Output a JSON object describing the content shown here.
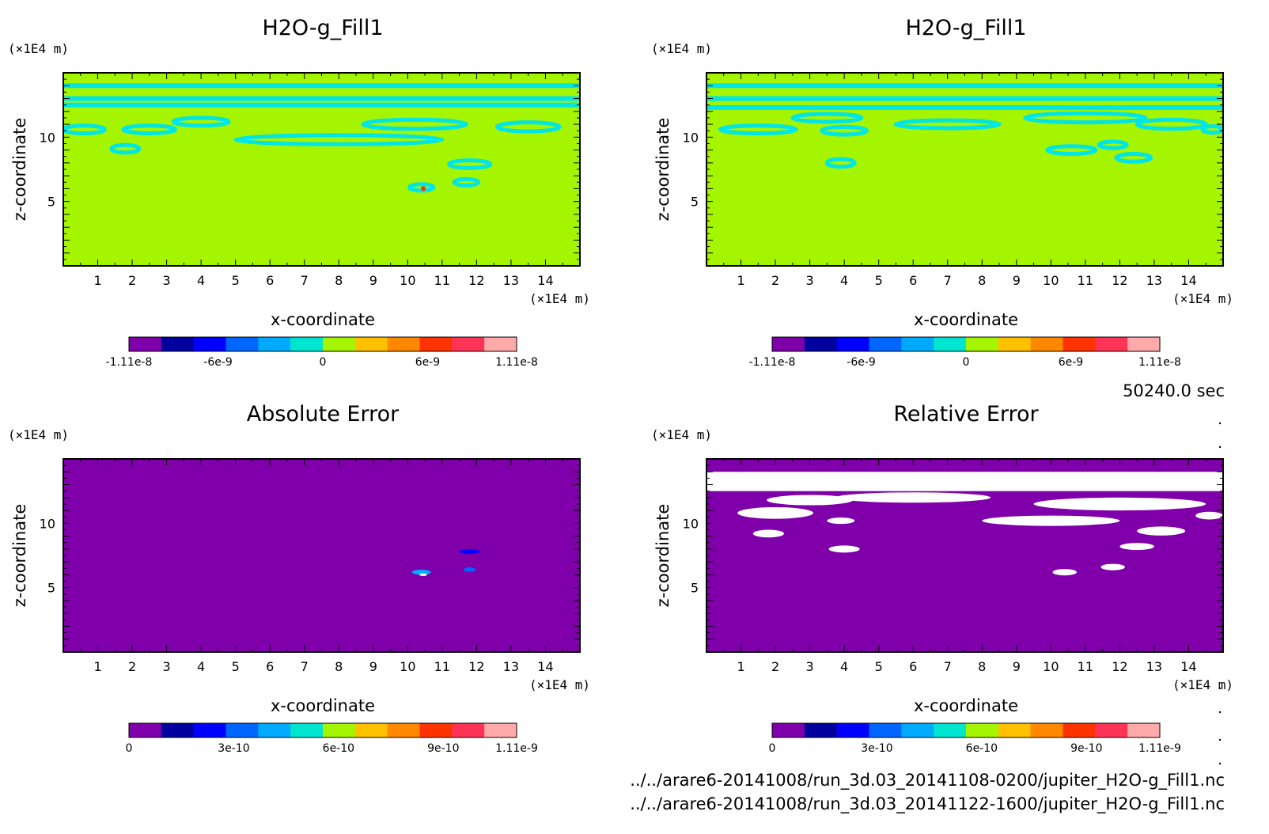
{
  "time_label": "50240.0 sec",
  "files": [
    "../../arare6-20141008/run_3d.03_20141108-0200/jupiter_H2O-g_Fill1.nc",
    "../../arare6-20141008/run_3d.03_20141122-1600/jupiter_H2O-g_Fill1.nc"
  ],
  "chart_data": [
    {
      "type": "heatmap",
      "title": "H2O-g_Fill1",
      "xlabel": "x-coordinate",
      "ylabel": "z-coordinate",
      "x_unit": "(×1E4 m)",
      "y_unit": "(×1E4 m)",
      "xlim": [
        0,
        15
      ],
      "ylim": [
        0,
        15
      ],
      "x_ticks": [
        "1",
        "2",
        "3",
        "4",
        "5",
        "6",
        "7",
        "8",
        "9",
        "10",
        "11",
        "12",
        "13",
        "14"
      ],
      "y_ticks": [
        "5",
        "10"
      ],
      "background_color": "#a6f500",
      "contour_color": "#00e5e5",
      "colorbar": {
        "colors": [
          "#7f00aa",
          "#00009e",
          "#0000ff",
          "#0066ff",
          "#00aaff",
          "#00e5d0",
          "#a6f500",
          "#ffc000",
          "#ff8800",
          "#ff3300",
          "#ff3355",
          "#ffaaaa"
        ],
        "tick_labels": [
          "-1.11e-8",
          "-6e-9",
          "0",
          "6e-9",
          "1.11e-8"
        ],
        "tick_values": [
          -1.11e-08,
          -6e-09,
          0,
          6e-09,
          1.11e-08
        ],
        "range": [
          -1.11e-08,
          1.11e-08
        ]
      },
      "features": [
        {
          "kind": "band",
          "y": 14.0
        },
        {
          "kind": "band",
          "y": 13.0
        },
        {
          "kind": "band",
          "y": 12.5
        },
        {
          "kind": "ring",
          "x": 0.6,
          "y": 10.6,
          "w": 1.2,
          "h": 0.6
        },
        {
          "kind": "ring",
          "x": 1.8,
          "y": 9.1,
          "w": 0.8,
          "h": 0.6
        },
        {
          "kind": "ring",
          "x": 2.5,
          "y": 10.6,
          "w": 1.5,
          "h": 0.6
        },
        {
          "kind": "ring",
          "x": 4.0,
          "y": 11.2,
          "w": 1.6,
          "h": 0.6
        },
        {
          "kind": "ring",
          "x": 8.0,
          "y": 9.8,
          "w": 6.0,
          "h": 0.7
        },
        {
          "kind": "ring",
          "x": 10.2,
          "y": 11.0,
          "w": 3.0,
          "h": 0.7
        },
        {
          "kind": "ring",
          "x": 11.8,
          "y": 7.9,
          "w": 1.2,
          "h": 0.6
        },
        {
          "kind": "ring",
          "x": 11.7,
          "y": 6.5,
          "w": 0.7,
          "h": 0.5
        },
        {
          "kind": "ring",
          "x": 10.4,
          "y": 6.1,
          "w": 0.7,
          "h": 0.5
        },
        {
          "kind": "ring",
          "x": 13.5,
          "y": 10.8,
          "w": 1.8,
          "h": 0.7
        },
        {
          "kind": "dot",
          "x": 10.45,
          "y": 6.0,
          "color": "#ff3300"
        }
      ]
    },
    {
      "type": "heatmap",
      "title": "H2O-g_Fill1",
      "xlabel": "x-coordinate",
      "ylabel": "z-coordinate",
      "x_unit": "(×1E4 m)",
      "y_unit": "(×1E4 m)",
      "xlim": [
        0,
        15
      ],
      "ylim": [
        0,
        15
      ],
      "x_ticks": [
        "1",
        "2",
        "3",
        "4",
        "5",
        "6",
        "7",
        "8",
        "9",
        "10",
        "11",
        "12",
        "13",
        "14"
      ],
      "y_ticks": [
        "5",
        "10"
      ],
      "background_color": "#a6f500",
      "contour_color": "#00e5e5",
      "colorbar": {
        "colors": [
          "#7f00aa",
          "#00009e",
          "#0000ff",
          "#0066ff",
          "#00aaff",
          "#00e5d0",
          "#a6f500",
          "#ffc000",
          "#ff8800",
          "#ff3300",
          "#ff3355",
          "#ffaaaa"
        ],
        "tick_labels": [
          "-1.11e-8",
          "-6e-9",
          "0",
          "6e-9",
          "1.11e-8"
        ],
        "tick_values": [
          -1.11e-08,
          -6e-09,
          0,
          6e-09,
          1.11e-08
        ],
        "range": [
          -1.11e-08,
          1.11e-08
        ]
      },
      "features": [
        {
          "kind": "band",
          "y": 14.0
        },
        {
          "kind": "band",
          "y": 13.0
        },
        {
          "kind": "band",
          "y": 12.3
        },
        {
          "kind": "ring",
          "x": 1.5,
          "y": 10.6,
          "w": 2.2,
          "h": 0.6
        },
        {
          "kind": "ring",
          "x": 3.5,
          "y": 11.5,
          "w": 2.0,
          "h": 0.6
        },
        {
          "kind": "ring",
          "x": 4.0,
          "y": 10.5,
          "w": 1.3,
          "h": 0.6
        },
        {
          "kind": "ring",
          "x": 7.0,
          "y": 11.0,
          "w": 3.0,
          "h": 0.6
        },
        {
          "kind": "ring",
          "x": 11.0,
          "y": 11.5,
          "w": 3.5,
          "h": 0.7
        },
        {
          "kind": "ring",
          "x": 13.5,
          "y": 11.0,
          "w": 2.0,
          "h": 0.7
        },
        {
          "kind": "ring",
          "x": 3.9,
          "y": 8.0,
          "w": 0.8,
          "h": 0.6
        },
        {
          "kind": "ring",
          "x": 10.6,
          "y": 9.0,
          "w": 1.4,
          "h": 0.6
        },
        {
          "kind": "ring",
          "x": 11.8,
          "y": 9.4,
          "w": 0.8,
          "h": 0.5
        },
        {
          "kind": "ring",
          "x": 12.4,
          "y": 8.4,
          "w": 1.0,
          "h": 0.6
        },
        {
          "kind": "ring",
          "x": 14.7,
          "y": 10.6,
          "w": 0.6,
          "h": 0.5
        }
      ]
    },
    {
      "type": "heatmap",
      "title": "Absolute Error",
      "xlabel": "x-coordinate",
      "ylabel": "z-coordinate",
      "x_unit": "(×1E4 m)",
      "y_unit": "(×1E4 m)",
      "xlim": [
        0,
        15
      ],
      "ylim": [
        0,
        15
      ],
      "x_ticks": [
        "1",
        "2",
        "3",
        "4",
        "5",
        "6",
        "7",
        "8",
        "9",
        "10",
        "11",
        "12",
        "13",
        "14"
      ],
      "y_ticks": [
        "5",
        "10"
      ],
      "background_color": "#7f00aa",
      "colorbar": {
        "colors": [
          "#7f00aa",
          "#00009e",
          "#0000ff",
          "#0066ff",
          "#00aaff",
          "#00e5d0",
          "#a6f500",
          "#ffc000",
          "#ff8800",
          "#ff3300",
          "#ff3355",
          "#ffaaaa"
        ],
        "tick_labels": [
          "0",
          "3e-10",
          "6e-10",
          "9e-10",
          "1.11e-9"
        ],
        "tick_values": [
          0,
          3e-10,
          6e-10,
          9e-10,
          1.11e-09
        ],
        "range": [
          0,
          1.11e-09
        ]
      },
      "features": [
        {
          "kind": "blob",
          "x": 11.8,
          "y": 7.8,
          "w": 0.6,
          "h": 0.35,
          "color": "#0000ff"
        },
        {
          "kind": "blob",
          "x": 11.8,
          "y": 6.4,
          "w": 0.35,
          "h": 0.35,
          "color": "#0066ff"
        },
        {
          "kind": "blob",
          "x": 10.4,
          "y": 6.2,
          "w": 0.55,
          "h": 0.4,
          "color": "#00aaff"
        },
        {
          "kind": "blob",
          "x": 10.45,
          "y": 6.0,
          "w": 0.22,
          "h": 0.2,
          "color": "#ffffff"
        }
      ]
    },
    {
      "type": "heatmap",
      "title": "Relative Error",
      "xlabel": "x-coordinate",
      "ylabel": "z-coordinate",
      "x_unit": "(×1E4 m)",
      "y_unit": "(×1E4 m)",
      "xlim": [
        0,
        15
      ],
      "ylim": [
        0,
        15
      ],
      "x_ticks": [
        "1",
        "2",
        "3",
        "4",
        "5",
        "6",
        "7",
        "8",
        "9",
        "10",
        "11",
        "12",
        "13",
        "14"
      ],
      "y_ticks": [
        "5",
        "10"
      ],
      "background_color": "#7f00aa",
      "colorbar": {
        "colors": [
          "#7f00aa",
          "#00009e",
          "#0000ff",
          "#0066ff",
          "#00aaff",
          "#00e5d0",
          "#a6f500",
          "#ffc000",
          "#ff8800",
          "#ff3300",
          "#ff3355",
          "#ffaaaa"
        ],
        "tick_labels": [
          "0",
          "3e-10",
          "6e-10",
          "9e-10",
          "1.11e-9"
        ],
        "tick_values": [
          0,
          3e-10,
          6e-10,
          9e-10,
          1.11e-09
        ],
        "range": [
          0,
          1.11e-09
        ]
      },
      "features": [
        {
          "kind": "block",
          "x0": 0,
          "x1": 15,
          "y0": 12.5,
          "y1": 14.0,
          "color": "#ffffff"
        },
        {
          "kind": "blob",
          "x": 2.0,
          "y": 10.8,
          "w": 2.2,
          "h": 0.9,
          "color": "#ffffff"
        },
        {
          "kind": "blob",
          "x": 3.0,
          "y": 11.8,
          "w": 2.5,
          "h": 0.8,
          "color": "#ffffff"
        },
        {
          "kind": "blob",
          "x": 6.0,
          "y": 12.0,
          "w": 4.5,
          "h": 0.8,
          "color": "#ffffff"
        },
        {
          "kind": "blob",
          "x": 12.0,
          "y": 11.5,
          "w": 5.0,
          "h": 1.0,
          "color": "#ffffff"
        },
        {
          "kind": "blob",
          "x": 10.0,
          "y": 10.2,
          "w": 4.0,
          "h": 0.8,
          "color": "#ffffff"
        },
        {
          "kind": "blob",
          "x": 1.8,
          "y": 9.2,
          "w": 0.9,
          "h": 0.6,
          "color": "#ffffff"
        },
        {
          "kind": "blob",
          "x": 4.0,
          "y": 8.0,
          "w": 0.9,
          "h": 0.55,
          "color": "#ffffff"
        },
        {
          "kind": "blob",
          "x": 3.9,
          "y": 10.2,
          "w": 0.8,
          "h": 0.5,
          "color": "#ffffff"
        },
        {
          "kind": "blob",
          "x": 13.2,
          "y": 9.4,
          "w": 1.4,
          "h": 0.7,
          "color": "#ffffff"
        },
        {
          "kind": "blob",
          "x": 12.5,
          "y": 8.2,
          "w": 1.0,
          "h": 0.55,
          "color": "#ffffff"
        },
        {
          "kind": "blob",
          "x": 10.4,
          "y": 6.2,
          "w": 0.7,
          "h": 0.5,
          "color": "#ffffff"
        },
        {
          "kind": "blob",
          "x": 11.8,
          "y": 6.6,
          "w": 0.7,
          "h": 0.5,
          "color": "#ffffff"
        },
        {
          "kind": "blob",
          "x": 14.6,
          "y": 10.6,
          "w": 0.8,
          "h": 0.6,
          "color": "#ffffff"
        }
      ]
    }
  ]
}
